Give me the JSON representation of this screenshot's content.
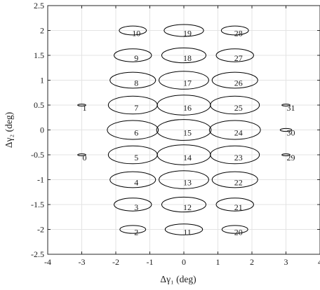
{
  "chart_data": {
    "type": "scatter",
    "title": "",
    "xlabel": "Δγ₁ (deg)",
    "ylabel": "Δγ₂ (deg)",
    "xlim": [
      -4,
      4
    ],
    "ylim": [
      -2.5,
      2.5
    ],
    "xticks": [
      -4,
      -3,
      -2,
      -1,
      0,
      1,
      2,
      3,
      4
    ],
    "yticks": [
      -2.5,
      -2,
      -1.5,
      -1,
      -0.5,
      0,
      0.5,
      1,
      1.5,
      2,
      2.5
    ],
    "xtick_labels": [
      "-4",
      "-3",
      "-2",
      "-1",
      "0",
      "1",
      "2",
      "3",
      "4"
    ],
    "ytick_labels": [
      "-2.5",
      "-2",
      "-1.5",
      "-1",
      "-0.5",
      "0",
      "0.5",
      "1",
      "1.5",
      "2",
      "2.5"
    ],
    "grid": true,
    "ellipses": [
      {
        "label": "0",
        "cx": -3,
        "cy": -0.5,
        "rx": 0.12,
        "ry": 0.02
      },
      {
        "label": "1",
        "cx": -3,
        "cy": 0.5,
        "rx": 0.12,
        "ry": 0.02
      },
      {
        "label": "2",
        "cx": -1.5,
        "cy": -2,
        "rx": 0.38,
        "ry": 0.08
      },
      {
        "label": "3",
        "cx": -1.5,
        "cy": -1.5,
        "rx": 0.55,
        "ry": 0.13
      },
      {
        "label": "4",
        "cx": -1.5,
        "cy": -1,
        "rx": 0.67,
        "ry": 0.16
      },
      {
        "label": "5",
        "cx": -1.5,
        "cy": -0.5,
        "rx": 0.72,
        "ry": 0.18
      },
      {
        "label": "6",
        "cx": -1.5,
        "cy": 0,
        "rx": 0.75,
        "ry": 0.19
      },
      {
        "label": "7",
        "cx": -1.5,
        "cy": 0.5,
        "rx": 0.72,
        "ry": 0.18
      },
      {
        "label": "8",
        "cx": -1.5,
        "cy": 1,
        "rx": 0.67,
        "ry": 0.16
      },
      {
        "label": "9",
        "cx": -1.5,
        "cy": 1.5,
        "rx": 0.55,
        "ry": 0.13
      },
      {
        "label": "10",
        "cx": -1.5,
        "cy": 2,
        "rx": 0.4,
        "ry": 0.09
      },
      {
        "label": "11",
        "cx": 0,
        "cy": -2,
        "rx": 0.55,
        "ry": 0.11
      },
      {
        "label": "12",
        "cx": 0,
        "cy": -1.5,
        "rx": 0.65,
        "ry": 0.15
      },
      {
        "label": "13",
        "cx": 0,
        "cy": -1,
        "rx": 0.73,
        "ry": 0.18
      },
      {
        "label": "14",
        "cx": 0,
        "cy": -0.5,
        "rx": 0.78,
        "ry": 0.2
      },
      {
        "label": "15",
        "cx": 0,
        "cy": 0,
        "rx": 0.8,
        "ry": 0.21
      },
      {
        "label": "16",
        "cx": 0,
        "cy": 0.5,
        "rx": 0.78,
        "ry": 0.2
      },
      {
        "label": "17",
        "cx": 0,
        "cy": 1,
        "rx": 0.73,
        "ry": 0.18
      },
      {
        "label": "18",
        "cx": 0,
        "cy": 1.5,
        "rx": 0.65,
        "ry": 0.15
      },
      {
        "label": "19",
        "cx": 0,
        "cy": 2,
        "rx": 0.58,
        "ry": 0.12
      },
      {
        "label": "20",
        "cx": 1.5,
        "cy": -2,
        "rx": 0.38,
        "ry": 0.08
      },
      {
        "label": "21",
        "cx": 1.5,
        "cy": -1.5,
        "rx": 0.55,
        "ry": 0.13
      },
      {
        "label": "22",
        "cx": 1.5,
        "cy": -1,
        "rx": 0.67,
        "ry": 0.16
      },
      {
        "label": "23",
        "cx": 1.5,
        "cy": -0.5,
        "rx": 0.72,
        "ry": 0.18
      },
      {
        "label": "24",
        "cx": 1.5,
        "cy": 0,
        "rx": 0.75,
        "ry": 0.19
      },
      {
        "label": "25",
        "cx": 1.5,
        "cy": 0.5,
        "rx": 0.72,
        "ry": 0.18
      },
      {
        "label": "26",
        "cx": 1.5,
        "cy": 1,
        "rx": 0.67,
        "ry": 0.16
      },
      {
        "label": "27",
        "cx": 1.5,
        "cy": 1.5,
        "rx": 0.55,
        "ry": 0.13
      },
      {
        "label": "28",
        "cx": 1.5,
        "cy": 2,
        "rx": 0.4,
        "ry": 0.09
      },
      {
        "label": "29",
        "cx": 3,
        "cy": -0.5,
        "rx": 0.12,
        "ry": 0.02
      },
      {
        "label": "30",
        "cx": 3,
        "cy": 0,
        "rx": 0.17,
        "ry": 0.03
      },
      {
        "label": "31",
        "cx": 3,
        "cy": 0.5,
        "rx": 0.12,
        "ry": 0.02
      }
    ],
    "colors": {
      "ellipse": "#000000",
      "grid": "#e3e3e3",
      "frame": "#262626"
    }
  }
}
